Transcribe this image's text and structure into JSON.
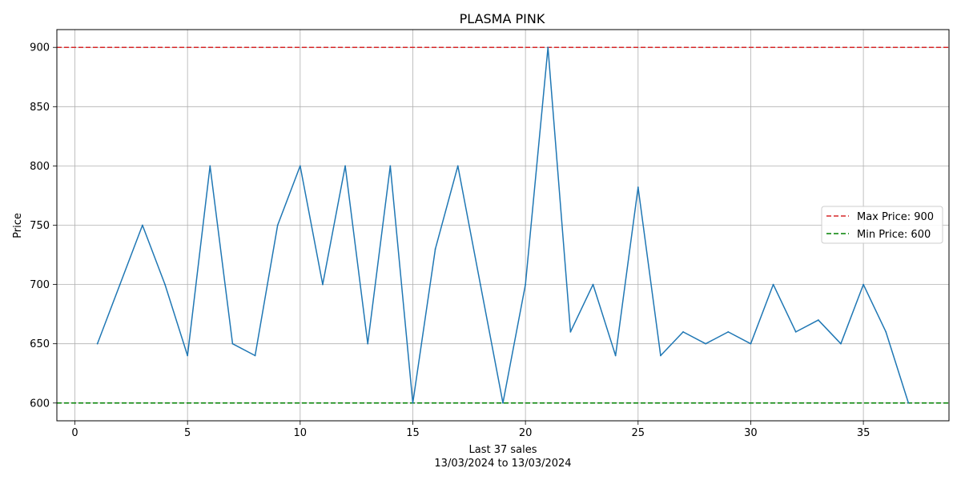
{
  "chart_data": {
    "type": "line",
    "title": "PLASMA PINK",
    "xlabel": "Last 37 sales",
    "xlabel_sub": "13/03/2024 to 13/03/2024",
    "ylabel": "Price",
    "xlim": [
      -0.8,
      38.8
    ],
    "ylim": [
      585,
      915
    ],
    "xticks": [
      0,
      5,
      10,
      15,
      20,
      25,
      30,
      35
    ],
    "yticks": [
      600,
      650,
      700,
      750,
      800,
      850,
      900
    ],
    "grid": true,
    "legend_position": "center-right",
    "series": [
      {
        "color": "#1f77b4",
        "x": [
          1,
          2,
          3,
          4,
          5,
          6,
          7,
          8,
          9,
          10,
          11,
          12,
          13,
          14,
          15,
          16,
          17,
          18,
          19,
          20,
          21,
          22,
          23,
          24,
          25,
          26,
          27,
          28,
          29,
          30,
          31,
          32,
          33,
          34,
          35,
          36,
          37
        ],
        "values": [
          650,
          700,
          750,
          700,
          640,
          800,
          650,
          640,
          750,
          800,
          700,
          800,
          650,
          800,
          600,
          730,
          800,
          700,
          600,
          700,
          900,
          660,
          700,
          640,
          782,
          640,
          660,
          650,
          660,
          650,
          700,
          660,
          670,
          650,
          700,
          660,
          600
        ]
      }
    ],
    "reference_lines": [
      {
        "name": "Max Price: 900",
        "y": 900,
        "color": "#d62728",
        "style": "dashed"
      },
      {
        "name": "Min Price: 600",
        "y": 600,
        "color": "#008000",
        "style": "dashed"
      }
    ]
  }
}
